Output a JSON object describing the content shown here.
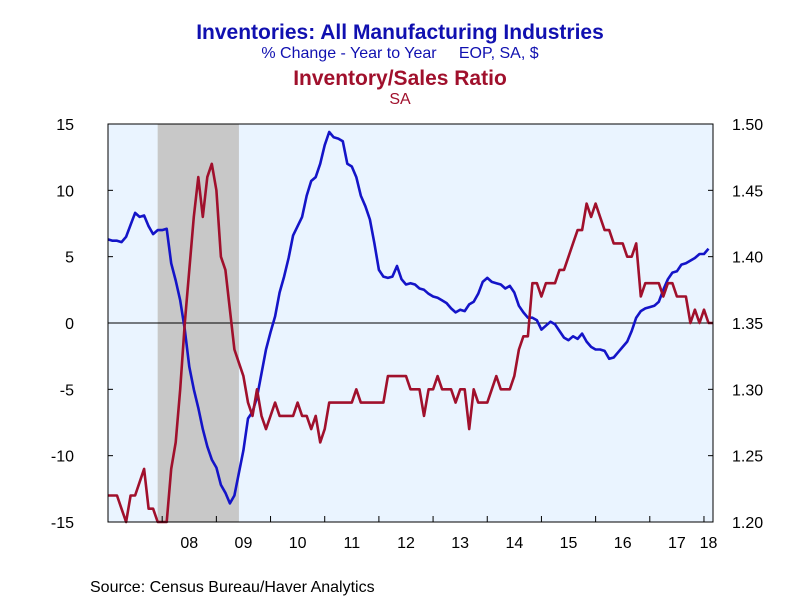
{
  "chart_data": {
    "type": "line",
    "title": "Inventories: All Manufacturing Industries",
    "subtitle": "% Change - Year to Year     EOP, SA, $",
    "title2": "Inventory/Sales Ratio",
    "subtitle2": "SA",
    "source": "Source:  Census Bureau/Haver Analytics",
    "x_tick_labels": [
      "08",
      "09",
      "10",
      "11",
      "12",
      "13",
      "14",
      "15",
      "16",
      "17",
      "18"
    ],
    "x_range": [
      "2007-01",
      "2018-03"
    ],
    "y_left": {
      "range": [
        -15,
        15
      ],
      "ticks": [
        "15",
        "10",
        "5",
        "0",
        "-5",
        "-10",
        "-15"
      ]
    },
    "y_right": {
      "range": [
        1.2,
        1.5
      ],
      "ticks": [
        "1.50",
        "1.45",
        "1.40",
        "1.35",
        "1.30",
        "1.25",
        "1.20"
      ]
    },
    "recession_shading": [
      "2007-12",
      "2009-06"
    ],
    "zero_line": true,
    "series": [
      {
        "axis": "left",
        "color": "#1414c8",
        "points": [
          [
            "2007-01",
            6.3
          ],
          [
            "2007-02",
            6.2
          ],
          [
            "2007-03",
            6.2
          ],
          [
            "2007-04",
            6.1
          ],
          [
            "2007-05",
            6.5
          ],
          [
            "2007-06",
            7.4
          ],
          [
            "2007-07",
            8.3
          ],
          [
            "2007-08",
            8.0
          ],
          [
            "2007-09",
            8.1
          ],
          [
            "2007-10",
            7.3
          ],
          [
            "2007-11",
            6.7
          ],
          [
            "2007-12",
            7.0
          ],
          [
            "2008-01",
            7.0
          ],
          [
            "2008-02",
            7.1
          ],
          [
            "2008-03",
            4.5
          ],
          [
            "2008-04",
            3.2
          ],
          [
            "2008-05",
            1.7
          ],
          [
            "2008-06",
            -0.5
          ],
          [
            "2008-07",
            -3.3
          ],
          [
            "2008-08",
            -5.0
          ],
          [
            "2008-09",
            -6.4
          ],
          [
            "2008-10",
            -8.0
          ],
          [
            "2008-11",
            -9.3
          ],
          [
            "2008-12",
            -10.3
          ],
          [
            "2009-01",
            -10.9
          ],
          [
            "2009-02",
            -12.2
          ],
          [
            "2009-03",
            -12.8
          ],
          [
            "2009-04",
            -13.6
          ],
          [
            "2009-05",
            -13.0
          ],
          [
            "2009-06",
            -11.3
          ],
          [
            "2009-07",
            -9.6
          ],
          [
            "2009-08",
            -7.2
          ],
          [
            "2009-09",
            -6.7
          ],
          [
            "2009-10",
            -5.6
          ],
          [
            "2009-11",
            -3.8
          ],
          [
            "2009-12",
            -2.0
          ],
          [
            "2010-01",
            -0.7
          ],
          [
            "2010-02",
            0.5
          ],
          [
            "2010-03",
            2.3
          ],
          [
            "2010-04",
            3.5
          ],
          [
            "2010-05",
            4.9
          ],
          [
            "2010-06",
            6.6
          ],
          [
            "2010-07",
            7.3
          ],
          [
            "2010-08",
            8.0
          ],
          [
            "2010-09",
            9.6
          ],
          [
            "2010-10",
            10.7
          ],
          [
            "2010-11",
            11.0
          ],
          [
            "2010-12",
            12.0
          ],
          [
            "2011-01",
            13.4
          ],
          [
            "2011-02",
            14.4
          ],
          [
            "2011-03",
            14.0
          ],
          [
            "2011-04",
            13.9
          ],
          [
            "2011-05",
            13.7
          ],
          [
            "2011-06",
            12.0
          ],
          [
            "2011-07",
            11.8
          ],
          [
            "2011-08",
            11.0
          ],
          [
            "2011-09",
            9.6
          ],
          [
            "2011-10",
            8.8
          ],
          [
            "2011-11",
            7.8
          ],
          [
            "2011-12",
            6.0
          ],
          [
            "2012-01",
            4.0
          ],
          [
            "2012-02",
            3.5
          ],
          [
            "2012-03",
            3.4
          ],
          [
            "2012-04",
            3.5
          ],
          [
            "2012-05",
            4.3
          ],
          [
            "2012-06",
            3.3
          ],
          [
            "2012-07",
            2.9
          ],
          [
            "2012-08",
            3.0
          ],
          [
            "2012-09",
            2.9
          ],
          [
            "2012-10",
            2.6
          ],
          [
            "2012-11",
            2.5
          ],
          [
            "2012-12",
            2.2
          ],
          [
            "2013-01",
            2.0
          ],
          [
            "2013-02",
            1.9
          ],
          [
            "2013-03",
            1.7
          ],
          [
            "2013-04",
            1.5
          ],
          [
            "2013-05",
            1.1
          ],
          [
            "2013-06",
            0.8
          ],
          [
            "2013-07",
            1.0
          ],
          [
            "2013-08",
            0.9
          ],
          [
            "2013-09",
            1.4
          ],
          [
            "2013-10",
            1.6
          ],
          [
            "2013-11",
            2.2
          ],
          [
            "2013-12",
            3.1
          ],
          [
            "2014-01",
            3.4
          ],
          [
            "2014-02",
            3.1
          ],
          [
            "2014-03",
            3.0
          ],
          [
            "2014-04",
            2.9
          ],
          [
            "2014-05",
            2.6
          ],
          [
            "2014-06",
            2.8
          ],
          [
            "2014-07",
            2.3
          ],
          [
            "2014-08",
            1.3
          ],
          [
            "2014-09",
            0.8
          ],
          [
            "2014-10",
            0.4
          ],
          [
            "2014-11",
            0.4
          ],
          [
            "2014-12",
            0.2
          ],
          [
            "2015-01",
            -0.5
          ],
          [
            "2015-02",
            -0.2
          ],
          [
            "2015-03",
            0.1
          ],
          [
            "2015-04",
            -0.1
          ],
          [
            "2015-05",
            -0.6
          ],
          [
            "2015-06",
            -1.1
          ],
          [
            "2015-07",
            -1.3
          ],
          [
            "2015-08",
            -1.0
          ],
          [
            "2015-09",
            -1.2
          ],
          [
            "2015-10",
            -0.8
          ],
          [
            "2015-11",
            -1.4
          ],
          [
            "2015-12",
            -1.8
          ],
          [
            "2016-01",
            -2.0
          ],
          [
            "2016-02",
            -2.0
          ],
          [
            "2016-03",
            -2.1
          ],
          [
            "2016-04",
            -2.7
          ],
          [
            "2016-05",
            -2.6
          ],
          [
            "2016-06",
            -2.2
          ],
          [
            "2016-07",
            -1.8
          ],
          [
            "2016-08",
            -1.4
          ],
          [
            "2016-09",
            -0.6
          ],
          [
            "2016-10",
            0.4
          ],
          [
            "2016-11",
            0.9
          ],
          [
            "2016-12",
            1.1
          ],
          [
            "2017-01",
            1.2
          ],
          [
            "2017-02",
            1.3
          ],
          [
            "2017-03",
            1.6
          ],
          [
            "2017-04",
            2.5
          ],
          [
            "2017-05",
            3.3
          ],
          [
            "2017-06",
            3.8
          ],
          [
            "2017-07",
            3.9
          ],
          [
            "2017-08",
            4.4
          ],
          [
            "2017-09",
            4.5
          ],
          [
            "2017-10",
            4.7
          ],
          [
            "2017-11",
            4.9
          ],
          [
            "2017-12",
            5.2
          ],
          [
            "2018-01",
            5.2
          ],
          [
            "2018-02",
            5.6
          ]
        ]
      },
      {
        "axis": "right",
        "color": "#a0102c",
        "points": [
          [
            "2007-01",
            1.22
          ],
          [
            "2007-02",
            1.22
          ],
          [
            "2007-03",
            1.22
          ],
          [
            "2007-04",
            1.21
          ],
          [
            "2007-05",
            1.2
          ],
          [
            "2007-06",
            1.22
          ],
          [
            "2007-07",
            1.22
          ],
          [
            "2007-08",
            1.23
          ],
          [
            "2007-09",
            1.24
          ],
          [
            "2007-10",
            1.21
          ],
          [
            "2007-11",
            1.21
          ],
          [
            "2007-12",
            1.2
          ],
          [
            "2008-01",
            1.2
          ],
          [
            "2008-02",
            1.2
          ],
          [
            "2008-03",
            1.24
          ],
          [
            "2008-04",
            1.26
          ],
          [
            "2008-05",
            1.3
          ],
          [
            "2008-06",
            1.35
          ],
          [
            "2008-07",
            1.39
          ],
          [
            "2008-08",
            1.43
          ],
          [
            "2008-09",
            1.46
          ],
          [
            "2008-10",
            1.43
          ],
          [
            "2008-11",
            1.46
          ],
          [
            "2008-12",
            1.47
          ],
          [
            "2009-01",
            1.45
          ],
          [
            "2009-02",
            1.4
          ],
          [
            "2009-03",
            1.39
          ],
          [
            "2009-04",
            1.36
          ],
          [
            "2009-05",
            1.33
          ],
          [
            "2009-06",
            1.32
          ],
          [
            "2009-07",
            1.31
          ],
          [
            "2009-08",
            1.29
          ],
          [
            "2009-09",
            1.28
          ],
          [
            "2009-10",
            1.3
          ],
          [
            "2009-11",
            1.28
          ],
          [
            "2009-12",
            1.27
          ],
          [
            "2010-01",
            1.28
          ],
          [
            "2010-02",
            1.29
          ],
          [
            "2010-03",
            1.28
          ],
          [
            "2010-04",
            1.28
          ],
          [
            "2010-05",
            1.28
          ],
          [
            "2010-06",
            1.28
          ],
          [
            "2010-07",
            1.29
          ],
          [
            "2010-08",
            1.28
          ],
          [
            "2010-09",
            1.28
          ],
          [
            "2010-10",
            1.27
          ],
          [
            "2010-11",
            1.28
          ],
          [
            "2010-12",
            1.26
          ],
          [
            "2011-01",
            1.27
          ],
          [
            "2011-02",
            1.29
          ],
          [
            "2011-03",
            1.29
          ],
          [
            "2011-04",
            1.29
          ],
          [
            "2011-05",
            1.29
          ],
          [
            "2011-06",
            1.29
          ],
          [
            "2011-07",
            1.29
          ],
          [
            "2011-08",
            1.3
          ],
          [
            "2011-09",
            1.29
          ],
          [
            "2011-10",
            1.29
          ],
          [
            "2011-11",
            1.29
          ],
          [
            "2011-12",
            1.29
          ],
          [
            "2012-01",
            1.29
          ],
          [
            "2012-02",
            1.29
          ],
          [
            "2012-03",
            1.31
          ],
          [
            "2012-04",
            1.31
          ],
          [
            "2012-05",
            1.31
          ],
          [
            "2012-06",
            1.31
          ],
          [
            "2012-07",
            1.31
          ],
          [
            "2012-08",
            1.3
          ],
          [
            "2012-09",
            1.3
          ],
          [
            "2012-10",
            1.3
          ],
          [
            "2012-11",
            1.28
          ],
          [
            "2012-12",
            1.3
          ],
          [
            "2013-01",
            1.3
          ],
          [
            "2013-02",
            1.31
          ],
          [
            "2013-03",
            1.3
          ],
          [
            "2013-04",
            1.3
          ],
          [
            "2013-05",
            1.3
          ],
          [
            "2013-06",
            1.29
          ],
          [
            "2013-07",
            1.3
          ],
          [
            "2013-08",
            1.3
          ],
          [
            "2013-09",
            1.27
          ],
          [
            "2013-10",
            1.3
          ],
          [
            "2013-11",
            1.29
          ],
          [
            "2013-12",
            1.29
          ],
          [
            "2014-01",
            1.29
          ],
          [
            "2014-02",
            1.3
          ],
          [
            "2014-03",
            1.31
          ],
          [
            "2014-04",
            1.3
          ],
          [
            "2014-05",
            1.3
          ],
          [
            "2014-06",
            1.3
          ],
          [
            "2014-07",
            1.31
          ],
          [
            "2014-08",
            1.33
          ],
          [
            "2014-09",
            1.34
          ],
          [
            "2014-10",
            1.34
          ],
          [
            "2014-11",
            1.38
          ],
          [
            "2014-12",
            1.38
          ],
          [
            "2015-01",
            1.37
          ],
          [
            "2015-02",
            1.38
          ],
          [
            "2015-03",
            1.38
          ],
          [
            "2015-04",
            1.38
          ],
          [
            "2015-05",
            1.39
          ],
          [
            "2015-06",
            1.39
          ],
          [
            "2015-07",
            1.4
          ],
          [
            "2015-08",
            1.41
          ],
          [
            "2015-09",
            1.42
          ],
          [
            "2015-10",
            1.42
          ],
          [
            "2015-11",
            1.44
          ],
          [
            "2015-12",
            1.43
          ],
          [
            "2016-01",
            1.44
          ],
          [
            "2016-02",
            1.43
          ],
          [
            "2016-03",
            1.42
          ],
          [
            "2016-04",
            1.42
          ],
          [
            "2016-05",
            1.41
          ],
          [
            "2016-06",
            1.41
          ],
          [
            "2016-07",
            1.41
          ],
          [
            "2016-08",
            1.4
          ],
          [
            "2016-09",
            1.4
          ],
          [
            "2016-10",
            1.41
          ],
          [
            "2016-11",
            1.37
          ],
          [
            "2016-12",
            1.38
          ],
          [
            "2017-01",
            1.38
          ],
          [
            "2017-02",
            1.38
          ],
          [
            "2017-03",
            1.38
          ],
          [
            "2017-04",
            1.37
          ],
          [
            "2017-05",
            1.38
          ],
          [
            "2017-06",
            1.38
          ],
          [
            "2017-07",
            1.37
          ],
          [
            "2017-08",
            1.37
          ],
          [
            "2017-09",
            1.37
          ],
          [
            "2017-10",
            1.35
          ],
          [
            "2017-11",
            1.36
          ],
          [
            "2017-12",
            1.35
          ],
          [
            "2018-01",
            1.36
          ],
          [
            "2018-02",
            1.35
          ],
          [
            "2018-03",
            1.35
          ]
        ]
      }
    ]
  }
}
